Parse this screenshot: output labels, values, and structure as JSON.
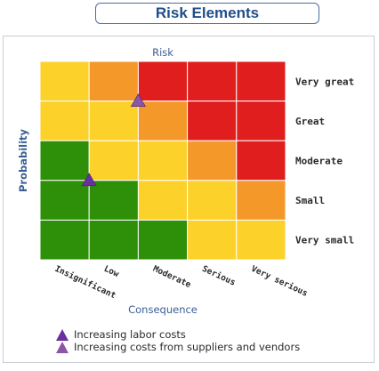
{
  "header": {
    "title": "Risk Elements"
  },
  "chart_data": {
    "type": "heatmap",
    "title": "Risk",
    "xlabel": "Consequence",
    "ylabel": "Probability",
    "x_categories": [
      "Insignificant",
      "Low",
      "Moderate",
      "Serious",
      "Very serious"
    ],
    "y_categories": [
      "Very great",
      "Great",
      "Moderate",
      "Small",
      "Very small"
    ],
    "colors": {
      "green": "#2e8f08",
      "yellow": "#fcd12a",
      "orange": "#f5982a",
      "red": "#e01e1e"
    },
    "grid": [
      [
        "yellow",
        "orange",
        "red",
        "red",
        "red"
      ],
      [
        "yellow",
        "yellow",
        "orange",
        "red",
        "red"
      ],
      [
        "green",
        "yellow",
        "yellow",
        "orange",
        "red"
      ],
      [
        "green",
        "green",
        "yellow",
        "yellow",
        "orange"
      ],
      [
        "green",
        "green",
        "green",
        "yellow",
        "yellow"
      ]
    ],
    "markers": [
      {
        "name": "Increasing labor costs",
        "color": "#6a2fa0",
        "consequence": 1.0,
        "probability": 2.0
      },
      {
        "name": "Increasing costs from suppliers and vendors",
        "color": "#8c55a8",
        "consequence": 2.0,
        "probability": 4.0
      }
    ]
  }
}
